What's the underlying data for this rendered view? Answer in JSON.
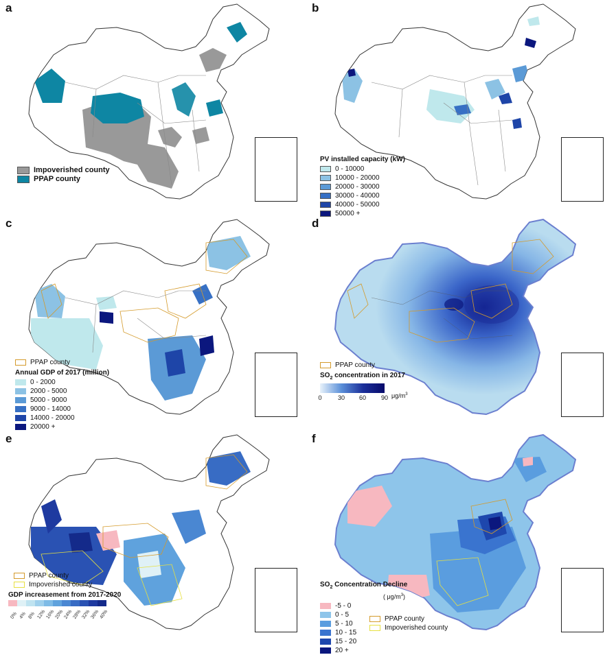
{
  "panels": {
    "a": {
      "label": "a",
      "legend": [
        {
          "label": "Impoverished county",
          "color": "#999999"
        },
        {
          "label": "PPAP county",
          "color": "#0e86a3"
        }
      ]
    },
    "b": {
      "label": "b",
      "legend_title": "PV installed capacity (kW)",
      "legend": [
        {
          "label": "0 - 10000",
          "color": "#bfe8ec"
        },
        {
          "label": "10000 - 20000",
          "color": "#8cc2e4"
        },
        {
          "label": "20000 - 30000",
          "color": "#5b9ad6"
        },
        {
          "label": "30000 - 40000",
          "color": "#3770c4"
        },
        {
          "label": "40000 - 50000",
          "color": "#1e45a8"
        },
        {
          "label": "50000 +",
          "color": "#0b177e"
        }
      ]
    },
    "c": {
      "label": "c",
      "outline_legend": {
        "label": "PPAP county",
        "color": "#d49a2a"
      },
      "legend_title": "Annual GDP of 2017 (million)",
      "legend": [
        {
          "label": "0 - 2000",
          "color": "#bfe8ec"
        },
        {
          "label": "2000 - 5000",
          "color": "#8cc2e4"
        },
        {
          "label": "5000 - 9000",
          "color": "#5b9ad6"
        },
        {
          "label": "9000 - 14000",
          "color": "#3770c4"
        },
        {
          "label": "14000 - 20000",
          "color": "#1e45a8"
        },
        {
          "label": "20000 +",
          "color": "#0b177e"
        }
      ]
    },
    "d": {
      "label": "d",
      "outline_legend": {
        "label": "PPAP county",
        "color": "#d49a2a"
      },
      "legend_title_main": "SO",
      "legend_title_sub": "2",
      "legend_title_rest": " concentration in 2017",
      "ticks": [
        "0",
        "30",
        "60",
        "90"
      ],
      "unit": "μg/m",
      "unit_sup": "3",
      "gradient": [
        "#e8f2fb",
        "#5a8fd8",
        "#1b2f9a",
        "#070a6a"
      ]
    },
    "e": {
      "label": "e",
      "outline_legend": [
        {
          "label": "PPAP county",
          "color": "#d49a2a"
        },
        {
          "label": "Impoverished county",
          "color": "#e7e040"
        }
      ],
      "legend_title": "GDP increasement from 2017-2020",
      "ticks": [
        "0%",
        "4%",
        "8%",
        "12%",
        "16%",
        "20%",
        "24%",
        "28%",
        "32%",
        "36%",
        "40%"
      ],
      "colors": [
        "#f7b8c0",
        "#dff1f6",
        "#bfe3f0",
        "#9fd0ec",
        "#7ebbe6",
        "#5fa2dd",
        "#4a87d2",
        "#386cc4",
        "#2a52b3",
        "#1e3aa0",
        "#142a8a"
      ]
    },
    "f": {
      "label": "f",
      "legend_title_main": "SO",
      "legend_title_sub": "2",
      "legend_title_rest": " Concentration Decline",
      "unit": "( μg/m",
      "unit_sup": "3",
      "unit_end": ")",
      "legend": [
        {
          "label": "-5 - 0",
          "color": "#f7b8c0"
        },
        {
          "label": "0 - 5",
          "color": "#8ec5ea"
        },
        {
          "label": "5 - 10",
          "color": "#5a9ddf"
        },
        {
          "label": "10 - 15",
          "color": "#3a74cf"
        },
        {
          "label": "15 - 20",
          "color": "#1e47ad"
        },
        {
          "label": "20 +",
          "color": "#0b177e"
        }
      ],
      "outline_legend": [
        {
          "label": "PPAP county",
          "color": "#d49a2a"
        },
        {
          "label": "Impoverished county",
          "color": "#e7e040"
        }
      ]
    }
  }
}
